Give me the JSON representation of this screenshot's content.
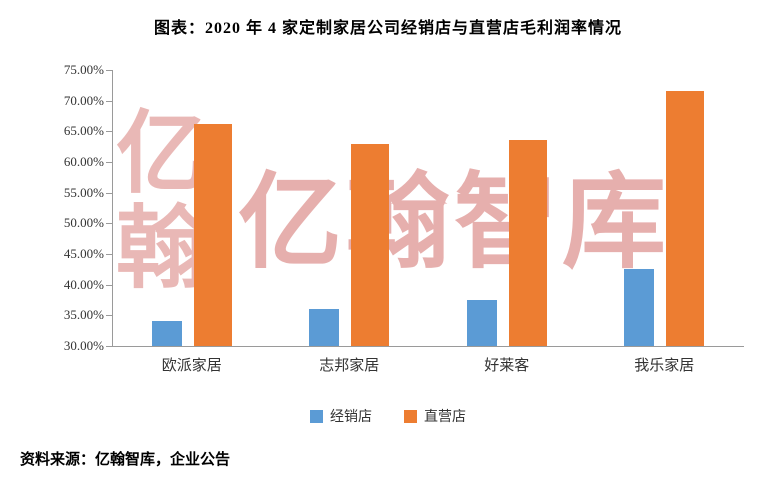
{
  "chart": {
    "title": "图表：2020 年 4 家定制家居公司经销店与直营店毛利润率情况"
  },
  "watermark": {
    "vertical": "亿翰",
    "horizontal": "亿翰智库"
  },
  "chart_data": {
    "type": "bar",
    "title": "图表：2020 年 4 家定制家居公司经销店与直营店毛利润率情况",
    "categories": [
      "欧派家居",
      "志邦家居",
      "好莱客",
      "我乐家居"
    ],
    "series": [
      {
        "name": "经销店",
        "color": "#5B9BD5",
        "values": [
          34.0,
          36.0,
          37.5,
          42.5
        ]
      },
      {
        "name": "直营店",
        "color": "#ED7D31",
        "values": [
          66.2,
          63.0,
          63.6,
          71.5
        ]
      }
    ],
    "xlabel": "",
    "ylabel": "",
    "ylim": [
      30,
      75
    ],
    "ytick_step": 5,
    "ytick_format": "percent_2dp",
    "grid": false,
    "legend_position": "bottom"
  },
  "footer": {
    "source": "资料来源：亿翰智库，企业公告"
  }
}
